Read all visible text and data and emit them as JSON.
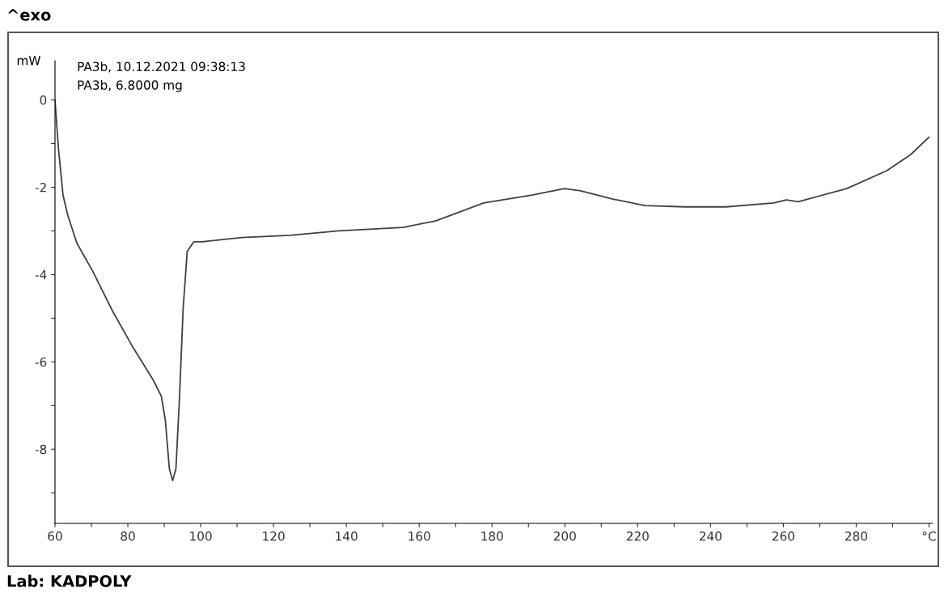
{
  "chart_data": {
    "type": "line",
    "x": [
      60,
      60.9,
      62.2,
      63.5,
      66,
      70.4,
      75.9,
      81.5,
      87,
      89.2,
      90.3,
      91.4,
      92.3,
      93.2,
      94.1,
      95.2,
      96.3,
      98.1,
      100.3,
      111.3,
      124.6,
      137.9,
      155.6,
      164.5,
      177.7,
      191,
      199.9,
      204.3,
      213.2,
      222,
      233,
      244.2,
      257.4,
      260.8,
      264.1,
      277.4,
      288.4,
      295,
      300
    ],
    "series": [
      {
        "color": "#404040",
        "values": [
          0,
          -1.07,
          -2.18,
          -2.64,
          -3.28,
          -3.93,
          -4.85,
          -5.68,
          -6.42,
          -6.79,
          -7.34,
          -8.45,
          -8.72,
          -8.45,
          -6.97,
          -4.76,
          -3.47,
          -3.25,
          -3.25,
          -3.15,
          -3.1,
          -3.0,
          -2.92,
          -2.77,
          -2.36,
          -2.18,
          -2.03,
          -2.08,
          -2.27,
          -2.42,
          -2.45,
          -2.45,
          -2.36,
          -2.29,
          -2.33,
          -2.03,
          -1.62,
          -1.25,
          -0.85
        ]
      }
    ],
    "ylabel": "mW",
    "xlim": [
      60,
      301
    ],
    "xticks": [
      60,
      {
        "value": 70,
        "label": null
      },
      80,
      {
        "value": 90,
        "label": null
      },
      100,
      {
        "value": 110,
        "label": null
      },
      120,
      {
        "value": 130,
        "label": null
      },
      140,
      {
        "value": 150,
        "label": null
      },
      160,
      {
        "value": 170,
        "label": null
      },
      180,
      {
        "value": 190,
        "label": null
      },
      200,
      {
        "value": 210,
        "label": null
      },
      220,
      {
        "value": 230,
        "label": null
      },
      240,
      {
        "value": 250,
        "label": null
      },
      260,
      {
        "value": 270,
        "label": null
      },
      280,
      {
        "value": 290,
        "label": null
      },
      {
        "value": 300,
        "label": "°C"
      }
    ],
    "ylim": [
      -9.7,
      0.9
    ],
    "yticks": [
      0,
      {
        "value": -1,
        "label": null
      },
      -2,
      {
        "value": -3,
        "label": null
      },
      -4,
      {
        "value": -5,
        "label": null
      },
      -6,
      {
        "value": -7,
        "label": null
      },
      -8,
      {
        "value": -9,
        "label": null
      }
    ],
    "grid": false,
    "line_style": "solid",
    "marker": "none",
    "annotations": [
      "^exo",
      "PA3b, 10.12.2021 09:38:13",
      "PA3b, 6.8000 mg",
      "Lab: KADPOLY"
    ]
  }
}
